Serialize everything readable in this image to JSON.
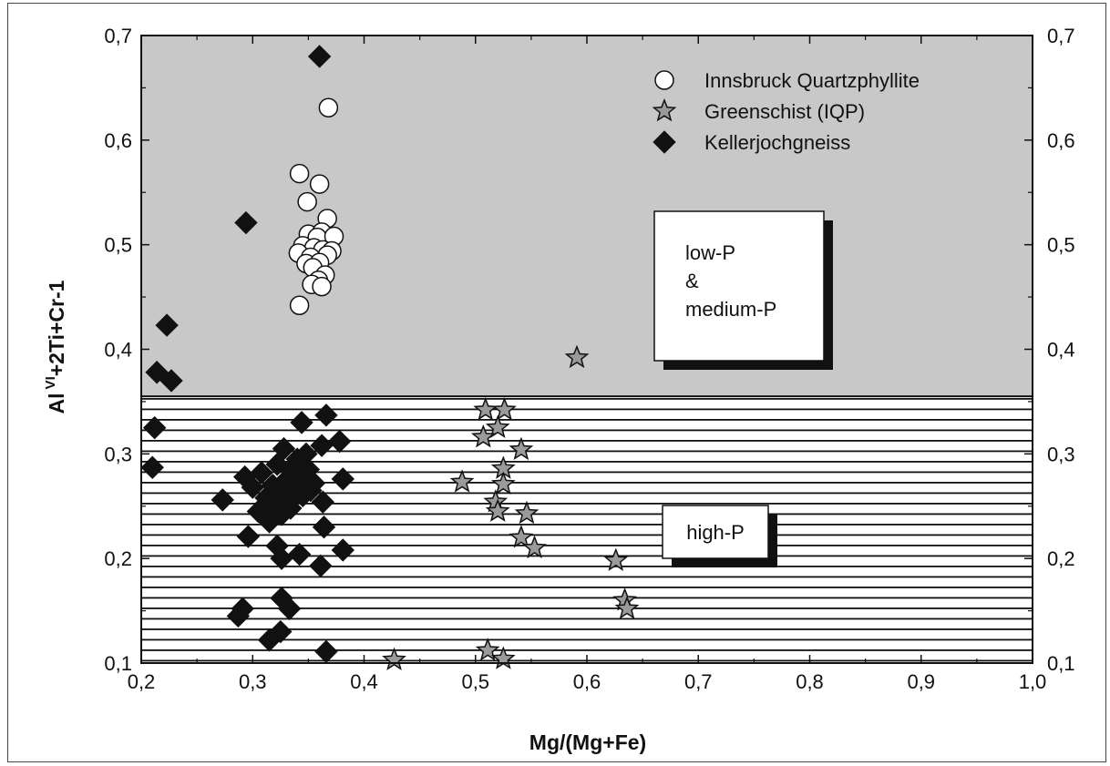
{
  "chart_data": {
    "type": "scatter",
    "xlabel": "Mg/(Mg+Fe)",
    "ylabel_parts": {
      "base": "Al",
      "sup": "VI",
      "rest": "+2Ti+Cr-1"
    },
    "xlim": [
      0.2,
      1.0
    ],
    "ylim": [
      0.1,
      0.7
    ],
    "x_ticks": [
      "0,2",
      "0,3",
      "0,4",
      "0,5",
      "0,6",
      "0,7",
      "0,8",
      "0,9",
      "1,0"
    ],
    "y_ticks": [
      "0,1",
      "0,2",
      "0,3",
      "0,4",
      "0,5",
      "0,6",
      "0,7"
    ],
    "regions": [
      {
        "label_lines": [
          "low-P",
          "&",
          "medium-P"
        ],
        "y_range": [
          0.355,
          0.7
        ],
        "fill": "#c8c8c8"
      },
      {
        "label_lines": [
          "high-P"
        ],
        "y_range": [
          0.1,
          0.355
        ],
        "fill": "hatched"
      }
    ],
    "legend_position": "top-right",
    "series": [
      {
        "name": "Innsbruck Quartzphyllite",
        "marker": "circle",
        "points": [
          [
            0.368,
            0.631
          ],
          [
            0.342,
            0.568
          ],
          [
            0.36,
            0.558
          ],
          [
            0.349,
            0.541
          ],
          [
            0.367,
            0.525
          ],
          [
            0.35,
            0.51
          ],
          [
            0.362,
            0.512
          ],
          [
            0.358,
            0.507
          ],
          [
            0.373,
            0.508
          ],
          [
            0.345,
            0.499
          ],
          [
            0.355,
            0.497
          ],
          [
            0.363,
            0.495
          ],
          [
            0.341,
            0.492
          ],
          [
            0.371,
            0.494
          ],
          [
            0.352,
            0.488
          ],
          [
            0.367,
            0.49
          ],
          [
            0.348,
            0.482
          ],
          [
            0.36,
            0.483
          ],
          [
            0.354,
            0.478
          ],
          [
            0.365,
            0.471
          ],
          [
            0.359,
            0.466
          ],
          [
            0.353,
            0.462
          ],
          [
            0.362,
            0.46
          ],
          [
            0.342,
            0.442
          ]
        ]
      },
      {
        "name": "Greenschist (IQP)",
        "marker": "star",
        "points": [
          [
            0.591,
            0.392
          ],
          [
            0.509,
            0.342
          ],
          [
            0.526,
            0.342
          ],
          [
            0.52,
            0.325
          ],
          [
            0.507,
            0.316
          ],
          [
            0.541,
            0.304
          ],
          [
            0.525,
            0.286
          ],
          [
            0.488,
            0.273
          ],
          [
            0.525,
            0.271
          ],
          [
            0.518,
            0.254
          ],
          [
            0.52,
            0.245
          ],
          [
            0.546,
            0.243
          ],
          [
            0.541,
            0.22
          ],
          [
            0.553,
            0.21
          ],
          [
            0.626,
            0.198
          ],
          [
            0.634,
            0.16
          ],
          [
            0.636,
            0.152
          ],
          [
            0.427,
            0.103
          ],
          [
            0.511,
            0.112
          ],
          [
            0.525,
            0.104
          ]
        ]
      },
      {
        "name": "Kellerjochgneiss",
        "marker": "diamond",
        "points": [
          [
            0.36,
            0.68
          ],
          [
            0.294,
            0.521
          ],
          [
            0.223,
            0.423
          ],
          [
            0.214,
            0.378
          ],
          [
            0.227,
            0.37
          ],
          [
            0.212,
            0.325
          ],
          [
            0.21,
            0.287
          ],
          [
            0.273,
            0.256
          ],
          [
            0.293,
            0.278
          ],
          [
            0.296,
            0.221
          ],
          [
            0.291,
            0.152
          ],
          [
            0.287,
            0.145
          ],
          [
            0.3,
            0.268
          ],
          [
            0.308,
            0.282
          ],
          [
            0.305,
            0.245
          ],
          [
            0.312,
            0.258
          ],
          [
            0.315,
            0.235
          ],
          [
            0.318,
            0.27
          ],
          [
            0.32,
            0.248
          ],
          [
            0.322,
            0.29
          ],
          [
            0.325,
            0.262
          ],
          [
            0.328,
            0.305
          ],
          [
            0.33,
            0.275
          ],
          [
            0.332,
            0.255
          ],
          [
            0.335,
            0.285
          ],
          [
            0.338,
            0.268
          ],
          [
            0.34,
            0.295
          ],
          [
            0.342,
            0.278
          ],
          [
            0.345,
            0.26
          ],
          [
            0.348,
            0.3
          ],
          [
            0.35,
            0.285
          ],
          [
            0.352,
            0.265
          ],
          [
            0.355,
            0.272
          ],
          [
            0.326,
            0.242
          ],
          [
            0.334,
            0.248
          ],
          [
            0.322,
            0.212
          ],
          [
            0.326,
            0.2
          ],
          [
            0.342,
            0.204
          ],
          [
            0.361,
            0.193
          ],
          [
            0.364,
            0.23
          ],
          [
            0.363,
            0.254
          ],
          [
            0.362,
            0.308
          ],
          [
            0.378,
            0.312
          ],
          [
            0.381,
            0.276
          ],
          [
            0.381,
            0.208
          ],
          [
            0.344,
            0.33
          ],
          [
            0.366,
            0.337
          ],
          [
            0.326,
            0.162
          ],
          [
            0.333,
            0.152
          ],
          [
            0.325,
            0.13
          ],
          [
            0.315,
            0.122
          ],
          [
            0.366,
            0.111
          ]
        ]
      }
    ]
  }
}
